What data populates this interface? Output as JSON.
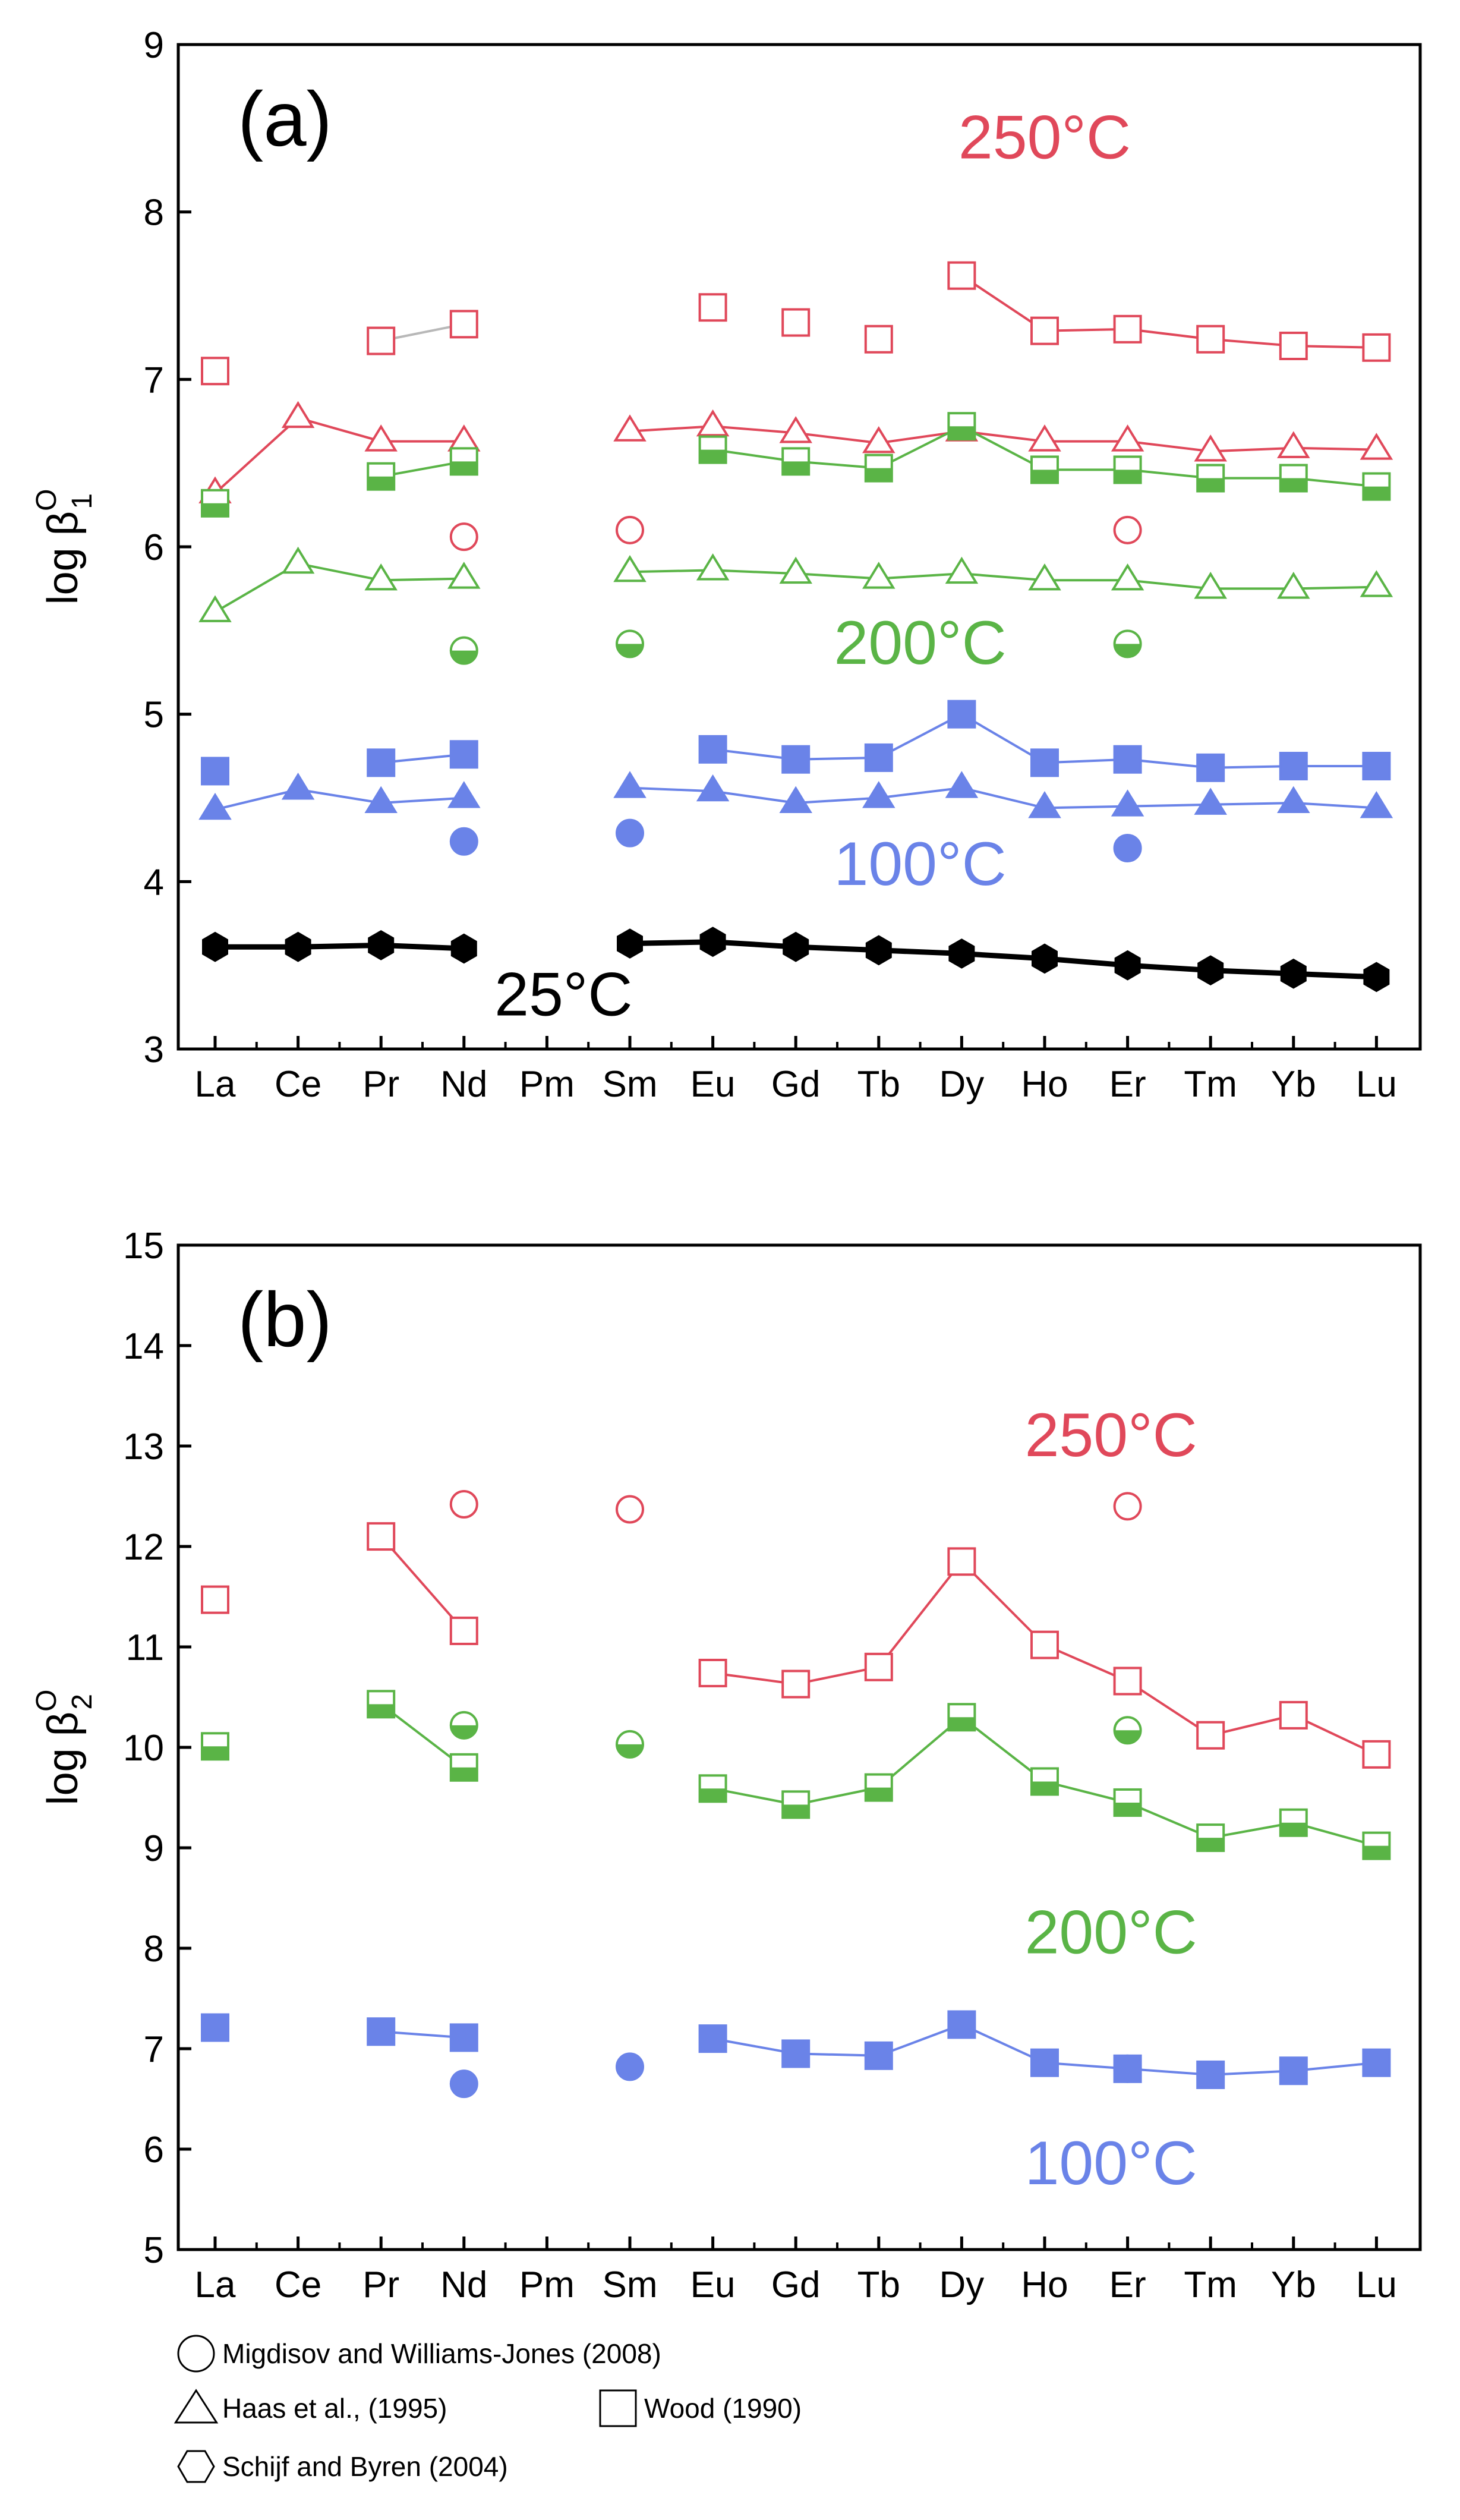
{
  "colors": {
    "red": "#e0485a",
    "green": "#5ab446",
    "blue": "#6a83e8",
    "black": "#000000",
    "connector": "#b8b8b8"
  },
  "chart_data": [
    {
      "type": "scatter",
      "panel_label": "(a)",
      "ylabel_main": "log β",
      "ylabel_sup": "O",
      "ylabel_sub": "1",
      "ylim": [
        3,
        9
      ],
      "yticks": [
        "3",
        "4",
        "5",
        "6",
        "7",
        "8",
        "9"
      ],
      "categories": [
        "La",
        "Ce",
        "Pr",
        "Nd",
        "Pm",
        "Sm",
        "Eu",
        "Gd",
        "Tb",
        "Dy",
        "Ho",
        "Er",
        "Tm",
        "Yb",
        "Lu"
      ],
      "annotations": [
        {
          "id": "250",
          "text": "250°C",
          "color": "red",
          "at": [
            10,
            8.32
          ]
        },
        {
          "id": "200",
          "text": "200°C",
          "color": "green",
          "at": [
            8.5,
            5.3
          ]
        },
        {
          "id": "100",
          "text": "100°C",
          "color": "blue",
          "at": [
            8.5,
            3.98
          ]
        },
        {
          "id": "25",
          "text": "25°C",
          "color": "black",
          "at": [
            4.2,
            3.2
          ]
        }
      ],
      "series": [
        {
          "name": "Wood (1990) 250°C",
          "marker": "square",
          "fill": "open",
          "color": "red",
          "values": [
            7.05,
            null,
            7.23,
            7.33,
            null,
            null,
            7.43,
            7.34,
            7.24,
            7.62,
            7.29,
            7.3,
            7.24,
            7.2,
            7.19
          ],
          "lines": [
            [
              9,
              14
            ]
          ],
          "gray_lines": [
            [
              2,
              3
            ]
          ]
        },
        {
          "name": "Haas et al. (1995) 250°C",
          "marker": "triangle",
          "fill": "open",
          "color": "red",
          "values": [
            6.32,
            6.77,
            6.63,
            6.63,
            null,
            6.69,
            6.72,
            6.68,
            6.62,
            6.69,
            6.63,
            6.63,
            6.57,
            6.59,
            6.58
          ],
          "lines": [
            [
              0,
              3
            ],
            [
              5,
              14
            ]
          ]
        },
        {
          "name": "Migdisov and Williams-Jones (2008) 250°C",
          "marker": "circle",
          "fill": "open",
          "color": "red",
          "values": [
            null,
            null,
            null,
            6.06,
            null,
            6.1,
            null,
            null,
            null,
            null,
            null,
            6.1,
            null,
            null,
            null
          ]
        },
        {
          "name": "Wood (1990) 200°C",
          "marker": "square",
          "fill": "half",
          "color": "green",
          "values": [
            6.26,
            null,
            6.42,
            6.51,
            null,
            null,
            6.58,
            6.51,
            6.47,
            6.72,
            6.46,
            6.46,
            6.41,
            6.41,
            6.36
          ],
          "lines": [
            [
              2,
              3
            ],
            [
              6,
              14
            ]
          ]
        },
        {
          "name": "Haas et al. (1995) 200°C",
          "marker": "triangle",
          "fill": "open",
          "color": "green",
          "values": [
            5.61,
            5.9,
            5.8,
            5.81,
            null,
            5.85,
            5.86,
            5.84,
            5.81,
            5.84,
            5.8,
            5.8,
            5.75,
            5.75,
            5.76
          ],
          "lines": [
            [
              0,
              3
            ],
            [
              5,
              14
            ]
          ]
        },
        {
          "name": "Migdisov and Williams-Jones (2008) 200°C",
          "marker": "circle",
          "fill": "half",
          "color": "green",
          "values": [
            null,
            null,
            null,
            5.38,
            null,
            5.42,
            null,
            null,
            null,
            null,
            null,
            5.42,
            null,
            null,
            null
          ]
        },
        {
          "name": "Wood (1990) 100°C",
          "marker": "square",
          "fill": "filled",
          "color": "blue",
          "values": [
            4.66,
            null,
            4.71,
            4.76,
            null,
            null,
            4.79,
            4.73,
            4.74,
            5.0,
            4.71,
            4.73,
            4.68,
            4.69,
            4.69
          ],
          "lines": [
            [
              2,
              3
            ],
            [
              6,
              14
            ]
          ]
        },
        {
          "name": "Haas et al. (1995) 100°C",
          "marker": "triangle",
          "fill": "filled",
          "color": "blue",
          "values": [
            4.43,
            4.55,
            4.47,
            4.5,
            null,
            4.56,
            4.54,
            4.47,
            4.5,
            4.56,
            4.44,
            4.45,
            4.46,
            4.47,
            4.44
          ],
          "lines": [
            [
              0,
              3
            ],
            [
              5,
              14
            ]
          ]
        },
        {
          "name": "Migdisov and Williams-Jones (2008) 100°C",
          "marker": "circle",
          "fill": "filled",
          "color": "blue",
          "values": [
            null,
            null,
            null,
            4.24,
            null,
            4.29,
            null,
            null,
            null,
            null,
            null,
            4.2,
            null,
            null,
            null
          ]
        },
        {
          "name": "Schijf and Byren (2004) 25°C",
          "marker": "hexagon",
          "fill": "filled",
          "color": "black",
          "values": [
            3.61,
            3.61,
            3.62,
            3.6,
            null,
            3.63,
            3.64,
            3.61,
            3.59,
            3.57,
            3.54,
            3.5,
            3.47,
            3.45,
            3.43
          ],
          "lines": [
            [
              0,
              3
            ],
            [
              5,
              14
            ]
          ],
          "thick": true
        }
      ]
    },
    {
      "type": "scatter",
      "panel_label": "(b)",
      "ylabel_main": "log β",
      "ylabel_sup": "O",
      "ylabel_sub": "2",
      "ylim": [
        5,
        15
      ],
      "yticks": [
        "5",
        "6",
        "7",
        "8",
        "9",
        "10",
        "11",
        "12",
        "13",
        "14",
        "15"
      ],
      "categories": [
        "La",
        "Ce",
        "Pr",
        "Nd",
        "Pm",
        "Sm",
        "Eu",
        "Gd",
        "Tb",
        "Dy",
        "Ho",
        "Er",
        "Tm",
        "Yb",
        "Lu"
      ],
      "annotations": [
        {
          "id": "250",
          "text": "250°C",
          "color": "red",
          "at": [
            10.8,
            12.9
          ]
        },
        {
          "id": "200",
          "text": "200°C",
          "color": "green",
          "at": [
            10.8,
            7.95
          ]
        },
        {
          "id": "100",
          "text": "100°C",
          "color": "blue",
          "at": [
            10.8,
            5.65
          ]
        }
      ],
      "series": [
        {
          "name": "Wood (1990) 250°C",
          "marker": "square",
          "fill": "open",
          "color": "red",
          "values": [
            11.47,
            null,
            12.1,
            11.16,
            null,
            null,
            10.74,
            10.63,
            10.8,
            11.85,
            11.02,
            10.66,
            10.12,
            10.32,
            9.93
          ],
          "lines": [
            [
              2,
              3
            ],
            [
              6,
              14
            ]
          ]
        },
        {
          "name": "Migdisov and Williams-Jones (2008) 250°C",
          "marker": "circle",
          "fill": "open",
          "color": "red",
          "values": [
            null,
            null,
            null,
            12.42,
            null,
            12.37,
            null,
            null,
            null,
            null,
            null,
            12.4,
            null,
            null,
            null
          ]
        },
        {
          "name": "Wood (1990) 200°C",
          "marker": "square",
          "fill": "half",
          "color": "green",
          "values": [
            10.01,
            null,
            10.43,
            9.8,
            null,
            null,
            9.59,
            9.43,
            9.6,
            10.3,
            9.66,
            9.45,
            9.1,
            9.25,
            9.02
          ],
          "lines": [
            [
              2,
              3
            ],
            [
              6,
              14
            ]
          ]
        },
        {
          "name": "Migdisov and Williams-Jones (2008) 200°C",
          "marker": "circle",
          "fill": "half",
          "color": "green",
          "values": [
            null,
            null,
            null,
            10.22,
            null,
            10.03,
            null,
            null,
            null,
            null,
            null,
            10.17,
            null,
            null,
            null
          ]
        },
        {
          "name": "Wood (1990) 100°C",
          "marker": "square",
          "fill": "filled",
          "color": "blue",
          "values": [
            7.21,
            null,
            7.17,
            7.11,
            null,
            null,
            7.1,
            6.95,
            6.93,
            7.24,
            6.86,
            6.8,
            6.74,
            6.78,
            6.86
          ],
          "lines": [
            [
              2,
              3
            ],
            [
              6,
              14
            ]
          ]
        },
        {
          "name": "Migdisov and Williams-Jones (2008) 100°C",
          "marker": "circle",
          "fill": "filled",
          "color": "blue",
          "values": [
            null,
            null,
            null,
            6.65,
            null,
            6.82,
            null,
            null,
            null,
            null,
            null,
            6.8,
            null,
            null,
            null
          ]
        }
      ]
    }
  ],
  "legend": [
    {
      "id": "migdisov",
      "marker": "circle",
      "label": "Migdisov and Williams-Jones (2008)"
    },
    {
      "id": "haas",
      "marker": "triangle",
      "label": "Haas et al., (1995)"
    },
    {
      "id": "wood",
      "marker": "square",
      "label": "Wood (1990)"
    },
    {
      "id": "schijf",
      "marker": "hexagon",
      "label": "Schijf and Byren (2004)"
    }
  ]
}
